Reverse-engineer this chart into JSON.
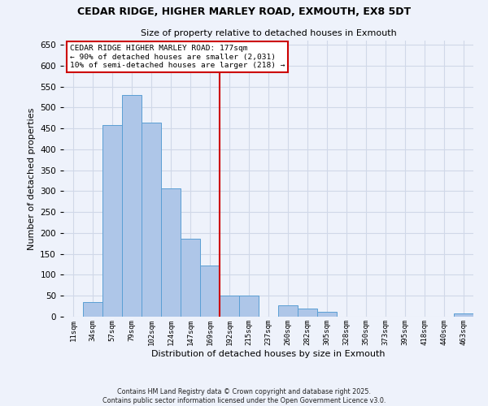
{
  "title1": "CEDAR RIDGE, HIGHER MARLEY ROAD, EXMOUTH, EX8 5DT",
  "title2": "Size of property relative to detached houses in Exmouth",
  "xlabel": "Distribution of detached houses by size in Exmouth",
  "ylabel": "Number of detached properties",
  "bin_labels": [
    "11sqm",
    "34sqm",
    "57sqm",
    "79sqm",
    "102sqm",
    "124sqm",
    "147sqm",
    "169sqm",
    "192sqm",
    "215sqm",
    "237sqm",
    "260sqm",
    "282sqm",
    "305sqm",
    "328sqm",
    "350sqm",
    "373sqm",
    "395sqm",
    "418sqm",
    "440sqm",
    "463sqm"
  ],
  "bar_values": [
    0,
    35,
    458,
    530,
    464,
    307,
    186,
    122,
    50,
    50,
    0,
    28,
    20,
    12,
    0,
    0,
    0,
    0,
    0,
    0,
    8
  ],
  "bar_color": "#aec6e8",
  "bar_edge_color": "#5a9fd4",
  "vline_color": "#cc0000",
  "annotation_line1": "CEDAR RIDGE HIGHER MARLEY ROAD: 177sqm",
  "annotation_line2": "← 90% of detached houses are smaller (2,031)",
  "annotation_line3": "10% of semi-detached houses are larger (218) →",
  "annotation_box_color": "#cc0000",
  "grid_color": "#d0d8e8",
  "background_color": "#eef2fb",
  "footer1": "Contains HM Land Registry data © Crown copyright and database right 2025.",
  "footer2": "Contains public sector information licensed under the Open Government Licence v3.0.",
  "ylim": [
    0,
    660
  ],
  "yticks": [
    0,
    50,
    100,
    150,
    200,
    250,
    300,
    350,
    400,
    450,
    500,
    550,
    600,
    650
  ]
}
